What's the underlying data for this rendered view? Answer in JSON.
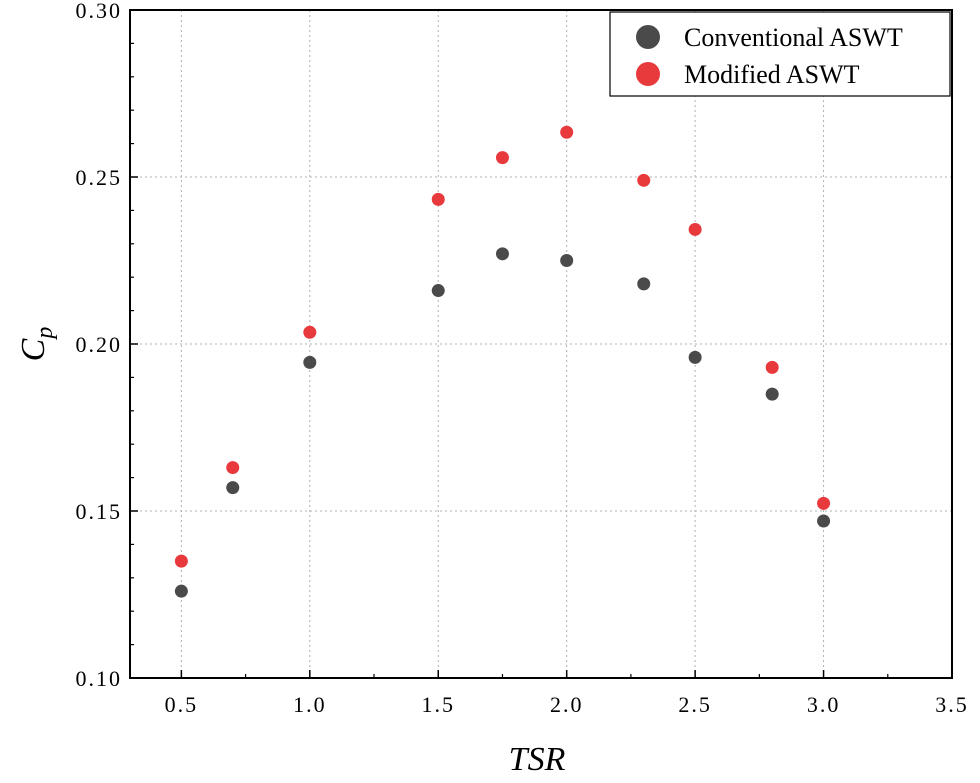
{
  "chart_data": {
    "type": "scatter",
    "title": "",
    "xlabel": "TSR",
    "ylabel": "C",
    "ylabel_subscript": "p",
    "xlim": [
      0.3,
      3.5
    ],
    "ylim": [
      0.1,
      0.3
    ],
    "xticks": [
      0.5,
      1.0,
      1.5,
      2.0,
      2.5,
      3.0,
      3.5
    ],
    "xtick_labels": [
      "0.5",
      "1.0",
      "1.5",
      "2.0",
      "2.5",
      "3.0",
      "3.5"
    ],
    "yticks": [
      0.1,
      0.15,
      0.2,
      0.25,
      0.3
    ],
    "ytick_labels": [
      "0.10",
      "0.15",
      "0.20",
      "0.25",
      "0.30"
    ],
    "grid": true,
    "legend_position": "top-right",
    "series": [
      {
        "name": "Conventional ASWT",
        "color": "#4a4a4a",
        "x": [
          0.5,
          0.7,
          1.0,
          1.5,
          1.75,
          2.0,
          2.3,
          2.5,
          2.8,
          3.0
        ],
        "y": [
          0.126,
          0.157,
          0.1945,
          0.216,
          0.227,
          0.225,
          0.218,
          0.196,
          0.185,
          0.147
        ]
      },
      {
        "name": "Modified ASWT",
        "color": "#e8393d",
        "x": [
          0.5,
          0.7,
          1.0,
          1.5,
          1.75,
          2.0,
          2.3,
          2.5,
          2.8,
          3.0
        ],
        "y": [
          0.135,
          0.163,
          0.2035,
          0.2433,
          0.2558,
          0.2634,
          0.249,
          0.2343,
          0.193,
          0.1523
        ]
      }
    ]
  }
}
